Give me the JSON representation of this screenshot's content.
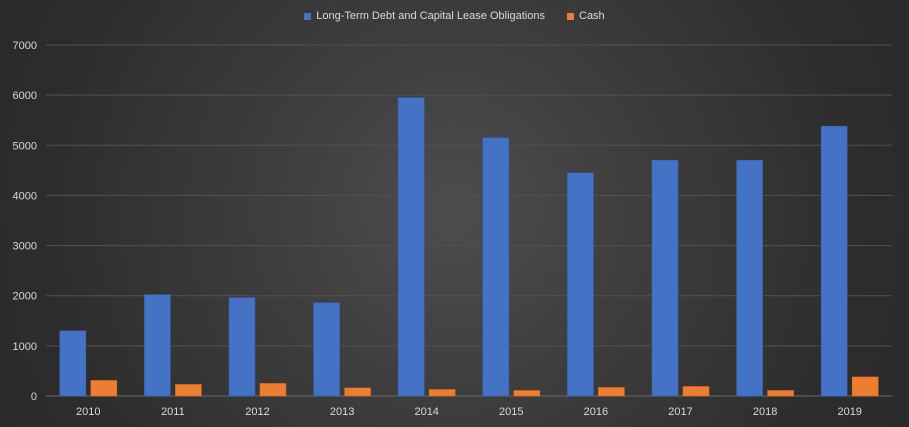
{
  "chart_data": {
    "type": "bar",
    "title": "",
    "xlabel": "",
    "ylabel": "",
    "categories": [
      "2010",
      "2011",
      "2012",
      "2013",
      "2014",
      "2015",
      "2016",
      "2017",
      "2018",
      "2019"
    ],
    "series": [
      {
        "name": "Long-Term Debt and Capital Lease Obligations",
        "color": "#4472c4",
        "values": [
          1300,
          2020,
          1960,
          1860,
          5950,
          5150,
          4450,
          4700,
          4700,
          5380
        ]
      },
      {
        "name": "Cash",
        "color": "#ed7d31",
        "values": [
          310,
          230,
          250,
          160,
          130,
          110,
          170,
          190,
          110,
          380
        ]
      }
    ],
    "ylim": [
      0,
      7000
    ],
    "yticks": [
      "0",
      "1000",
      "2000",
      "3000",
      "4000",
      "5000",
      "6000",
      "7000"
    ],
    "grid": true,
    "legend_position": "top-center"
  }
}
